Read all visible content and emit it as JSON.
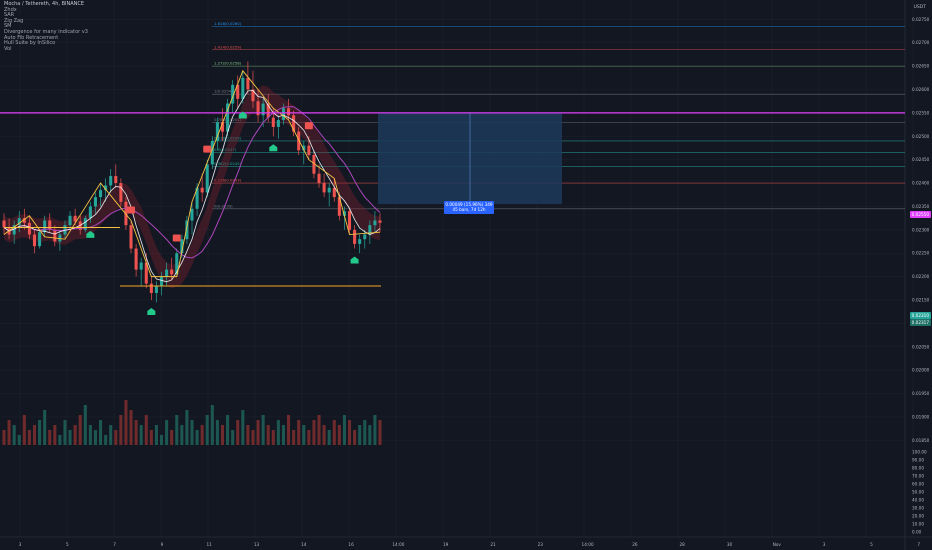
{
  "header": {
    "symbol_title": "Mocha / Tethereth, 4h, BINANCE",
    "currency": "USDT",
    "indicators": [
      "Zhdx",
      "SAR",
      "Zig Zag",
      "SM",
      "Divergence for many indicator v3",
      "Auto Fib Retracement",
      "Hull Suite by InSilico",
      "Vol"
    ]
  },
  "colors": {
    "background": "#131722",
    "grid": "#1e222d",
    "candle_up": "#26a69a",
    "candle_down": "#ef5350",
    "zigzag": "#f5c542",
    "support_line": "#f5a623",
    "resistance_line": "#e040fb",
    "ma_line": "#ab47bc",
    "white_ma": "#ffffff",
    "position_box": "#1c3a5a",
    "label_blue": "#2962ff",
    "buy_marker": "#22c98a",
    "sell_marker": "#ef5350"
  },
  "chart_data": {
    "type": "candlestick",
    "candles": [
      [
        0.0232,
        0.02335,
        0.0229,
        0.02305
      ],
      [
        0.02305,
        0.02325,
        0.0228,
        0.0229
      ],
      [
        0.0229,
        0.0232,
        0.0227,
        0.0231
      ],
      [
        0.0231,
        0.0234,
        0.02295,
        0.02325
      ],
      [
        0.02325,
        0.02345,
        0.023,
        0.02315
      ],
      [
        0.02315,
        0.0233,
        0.0228,
        0.0229
      ],
      [
        0.0229,
        0.023,
        0.0225,
        0.02265
      ],
      [
        0.02265,
        0.023,
        0.0226,
        0.02295
      ],
      [
        0.02295,
        0.0233,
        0.02285,
        0.0232
      ],
      [
        0.0232,
        0.02335,
        0.02295,
        0.023
      ],
      [
        0.023,
        0.0231,
        0.02265,
        0.02275
      ],
      [
        0.02275,
        0.023,
        0.02255,
        0.0229
      ],
      [
        0.0229,
        0.0232,
        0.0228,
        0.0231
      ],
      [
        0.0231,
        0.0234,
        0.023,
        0.0233
      ],
      [
        0.0233,
        0.02345,
        0.0231,
        0.02318
      ],
      [
        0.02318,
        0.0233,
        0.0229,
        0.023
      ],
      [
        0.023,
        0.0233,
        0.02295,
        0.02325
      ],
      [
        0.02325,
        0.0236,
        0.02315,
        0.0235
      ],
      [
        0.0235,
        0.0238,
        0.02335,
        0.0237
      ],
      [
        0.0237,
        0.024,
        0.0235,
        0.02385
      ],
      [
        0.02385,
        0.0241,
        0.0236,
        0.02395
      ],
      [
        0.02395,
        0.0243,
        0.0238,
        0.02415
      ],
      [
        0.02415,
        0.0244,
        0.0239,
        0.024
      ],
      [
        0.024,
        0.0241,
        0.0235,
        0.0236
      ],
      [
        0.0236,
        0.0237,
        0.023,
        0.0231
      ],
      [
        0.0231,
        0.0232,
        0.0225,
        0.0226
      ],
      [
        0.0226,
        0.0227,
        0.022,
        0.02215
      ],
      [
        0.02215,
        0.0224,
        0.0218,
        0.0223
      ],
      [
        0.0223,
        0.0225,
        0.02175,
        0.02185
      ],
      [
        0.02185,
        0.022,
        0.0215,
        0.02165
      ],
      [
        0.02165,
        0.0219,
        0.02145,
        0.0218
      ],
      [
        0.0218,
        0.0221,
        0.0216,
        0.022
      ],
      [
        0.022,
        0.0223,
        0.0218,
        0.02215
      ],
      [
        0.02215,
        0.0224,
        0.02195,
        0.02205
      ],
      [
        0.02205,
        0.0226,
        0.022,
        0.0225
      ],
      [
        0.0225,
        0.0229,
        0.0224,
        0.0228
      ],
      [
        0.0228,
        0.0233,
        0.0227,
        0.0232
      ],
      [
        0.0232,
        0.0236,
        0.0229,
        0.02345
      ],
      [
        0.02345,
        0.024,
        0.0233,
        0.0239
      ],
      [
        0.0239,
        0.0242,
        0.0236,
        0.0238
      ],
      [
        0.0238,
        0.0245,
        0.0237,
        0.0244
      ],
      [
        0.0244,
        0.025,
        0.0243,
        0.0249
      ],
      [
        0.0249,
        0.0254,
        0.0247,
        0.0253
      ],
      [
        0.0253,
        0.0256,
        0.0249,
        0.0251
      ],
      [
        0.0251,
        0.0258,
        0.025,
        0.0257
      ],
      [
        0.0257,
        0.0262,
        0.0255,
        0.0261
      ],
      [
        0.0261,
        0.0263,
        0.0256,
        0.0258
      ],
      [
        0.0258,
        0.0264,
        0.0257,
        0.02625
      ],
      [
        0.02625,
        0.0266,
        0.0259,
        0.026
      ],
      [
        0.026,
        0.0264,
        0.0256,
        0.02575
      ],
      [
        0.02575,
        0.026,
        0.0253,
        0.02545
      ],
      [
        0.02545,
        0.0258,
        0.0252,
        0.0257
      ],
      [
        0.0257,
        0.0259,
        0.0253,
        0.0254
      ],
      [
        0.0254,
        0.0256,
        0.025,
        0.0252
      ],
      [
        0.0252,
        0.02545,
        0.02495,
        0.02535
      ],
      [
        0.02535,
        0.0257,
        0.02525,
        0.0256
      ],
      [
        0.0256,
        0.0258,
        0.02535,
        0.02545
      ],
      [
        0.02545,
        0.02555,
        0.025,
        0.0251
      ],
      [
        0.0251,
        0.0252,
        0.0246,
        0.0247
      ],
      [
        0.0247,
        0.0249,
        0.0244,
        0.0248
      ],
      [
        0.0248,
        0.025,
        0.0245,
        0.0246
      ],
      [
        0.0246,
        0.0247,
        0.0241,
        0.0242
      ],
      [
        0.0242,
        0.0244,
        0.0239,
        0.024
      ],
      [
        0.024,
        0.0242,
        0.0237,
        0.0238
      ],
      [
        0.0238,
        0.024,
        0.0235,
        0.0239
      ],
      [
        0.0239,
        0.0241,
        0.0236,
        0.0237
      ],
      [
        0.0237,
        0.0238,
        0.0232,
        0.0233
      ],
      [
        0.0233,
        0.0235,
        0.023,
        0.0234
      ],
      [
        0.0234,
        0.02345,
        0.0229,
        0.023
      ],
      [
        0.023,
        0.0231,
        0.0226,
        0.0227
      ],
      [
        0.0227,
        0.0229,
        0.0225,
        0.0228
      ],
      [
        0.0228,
        0.023,
        0.0226,
        0.0229
      ],
      [
        0.0229,
        0.0232,
        0.0227,
        0.0231
      ],
      [
        0.0231,
        0.0234,
        0.02295,
        0.0232
      ],
      [
        0.0232,
        0.02335,
        0.02295,
        0.02315
      ]
    ],
    "volumes": [
      3,
      5,
      4,
      2,
      6,
      3,
      4,
      5,
      7,
      3,
      4,
      2,
      5,
      3,
      4,
      6,
      8,
      4,
      3,
      5,
      2,
      4,
      3,
      6,
      9,
      7,
      5,
      4,
      6,
      3,
      4,
      2,
      5,
      3,
      6,
      4,
      7,
      5,
      3,
      4,
      6,
      8,
      5,
      4,
      6,
      3,
      5,
      7,
      4,
      3,
      5,
      6,
      4,
      3,
      5,
      4,
      6,
      3,
      5,
      4,
      3,
      5,
      6,
      4,
      3,
      5,
      4,
      6,
      5,
      3,
      4,
      5,
      4,
      6,
      5
    ],
    "price_axis": [
      "0.02750",
      "0.02700",
      "0.02650",
      "0.02600",
      "0.02550",
      "0.02500",
      "0.02450",
      "0.02400",
      "0.02350",
      "0.02300",
      "0.02250",
      "0.02200",
      "0.02150",
      "0.02100",
      "0.02050",
      "0.02000",
      "0.01950",
      "0.01900",
      "0.01850"
    ],
    "volume_axis": [
      "100.00",
      "90.00",
      "80.00",
      "70.00",
      "60.00",
      "50.00",
      "40.00",
      "30.00",
      "20.00",
      "10.00",
      "0.00"
    ],
    "time_axis": [
      "3",
      "5",
      "7",
      "9",
      "11",
      "13",
      "14",
      "16",
      "14:00",
      "19",
      "21",
      "23",
      "14:00",
      "26",
      "28",
      "30",
      "Nov",
      "3",
      "5",
      "7"
    ],
    "fib_levels": [
      {
        "label": "1.618(0.0260)",
        "price": 0.02735,
        "color": "#2196f3"
      },
      {
        "label": "1.414(0.0259)",
        "price": 0.02685,
        "color": "#ef5350"
      },
      {
        "label": "1.272(0.0258)",
        "price": 0.0265,
        "color": "#81c784"
      },
      {
        "label": "1(0.0254)",
        "price": 0.0259,
        "color": "#787b86"
      },
      {
        "label": "0.786(0.0251)",
        "price": 0.0253,
        "color": "#787b86"
      },
      {
        "label": "0.618(0.0249)",
        "price": 0.0249,
        "color": "#26a69a"
      },
      {
        "label": "0.5(0.0247)",
        "price": 0.02465,
        "color": "#26a69a"
      },
      {
        "label": "0.382(0.0245)",
        "price": 0.02435,
        "color": "#26a69a"
      },
      {
        "label": "0.236(0.0243)",
        "price": 0.024,
        "color": "#ef5350"
      },
      {
        "label": "0(0.0239)",
        "price": 0.02345,
        "color": "#787b86"
      }
    ],
    "resistance_price": 0.0255,
    "support_price": 0.0218,
    "left_support_price": 0.02305,
    "position": {
      "label_line1": "0.00049 (15.96%) 349",
      "label_line2": "45 bars, 7d 12h",
      "top_price": 0.0255,
      "bottom_price": 0.02355
    },
    "current_price_tags": [
      "0.02310",
      "0.02317"
    ],
    "resistance_tag": "0.02550"
  }
}
